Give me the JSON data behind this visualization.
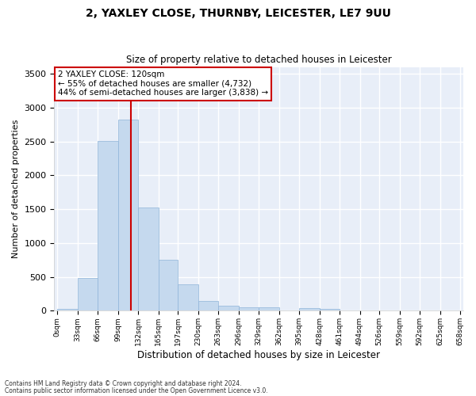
{
  "title": "2, YAXLEY CLOSE, THURNBY, LEICESTER, LE7 9UU",
  "subtitle": "Size of property relative to detached houses in Leicester",
  "xlabel": "Distribution of detached houses by size in Leicester",
  "ylabel": "Number of detached properties",
  "bar_color": "#c5d9ee",
  "bar_edge_color": "#8fb4d9",
  "background_color": "#e8eef8",
  "grid_color": "#ffffff",
  "bin_edges": [
    0,
    33,
    66,
    99,
    132,
    165,
    197,
    230,
    263,
    296,
    329,
    362,
    395,
    428,
    461,
    494,
    526,
    559,
    592,
    625,
    658
  ],
  "bin_labels": [
    "0sqm",
    "33sqm",
    "66sqm",
    "99sqm",
    "132sqm",
    "165sqm",
    "197sqm",
    "230sqm",
    "263sqm",
    "296sqm",
    "329sqm",
    "362sqm",
    "395sqm",
    "428sqm",
    "461sqm",
    "494sqm",
    "526sqm",
    "559sqm",
    "592sqm",
    "625sqm",
    "658sqm"
  ],
  "counts": [
    30,
    480,
    2510,
    2820,
    1520,
    750,
    390,
    140,
    70,
    55,
    55,
    0,
    40,
    30,
    0,
    0,
    0,
    0,
    0,
    0
  ],
  "red_line_x": 120,
  "annotation_title": "2 YAXLEY CLOSE: 120sqm",
  "annotation_line1": "← 55% of detached houses are smaller (4,732)",
  "annotation_line2": "44% of semi-detached houses are larger (3,838) →",
  "annotation_box_color": "#ffffff",
  "annotation_box_edge": "#cc0000",
  "red_line_color": "#cc0000",
  "ylim": [
    0,
    3600
  ],
  "yticks": [
    0,
    500,
    1000,
    1500,
    2000,
    2500,
    3000,
    3500
  ],
  "footer_line1": "Contains HM Land Registry data © Crown copyright and database right 2024.",
  "footer_line2": "Contains public sector information licensed under the Open Government Licence v3.0."
}
